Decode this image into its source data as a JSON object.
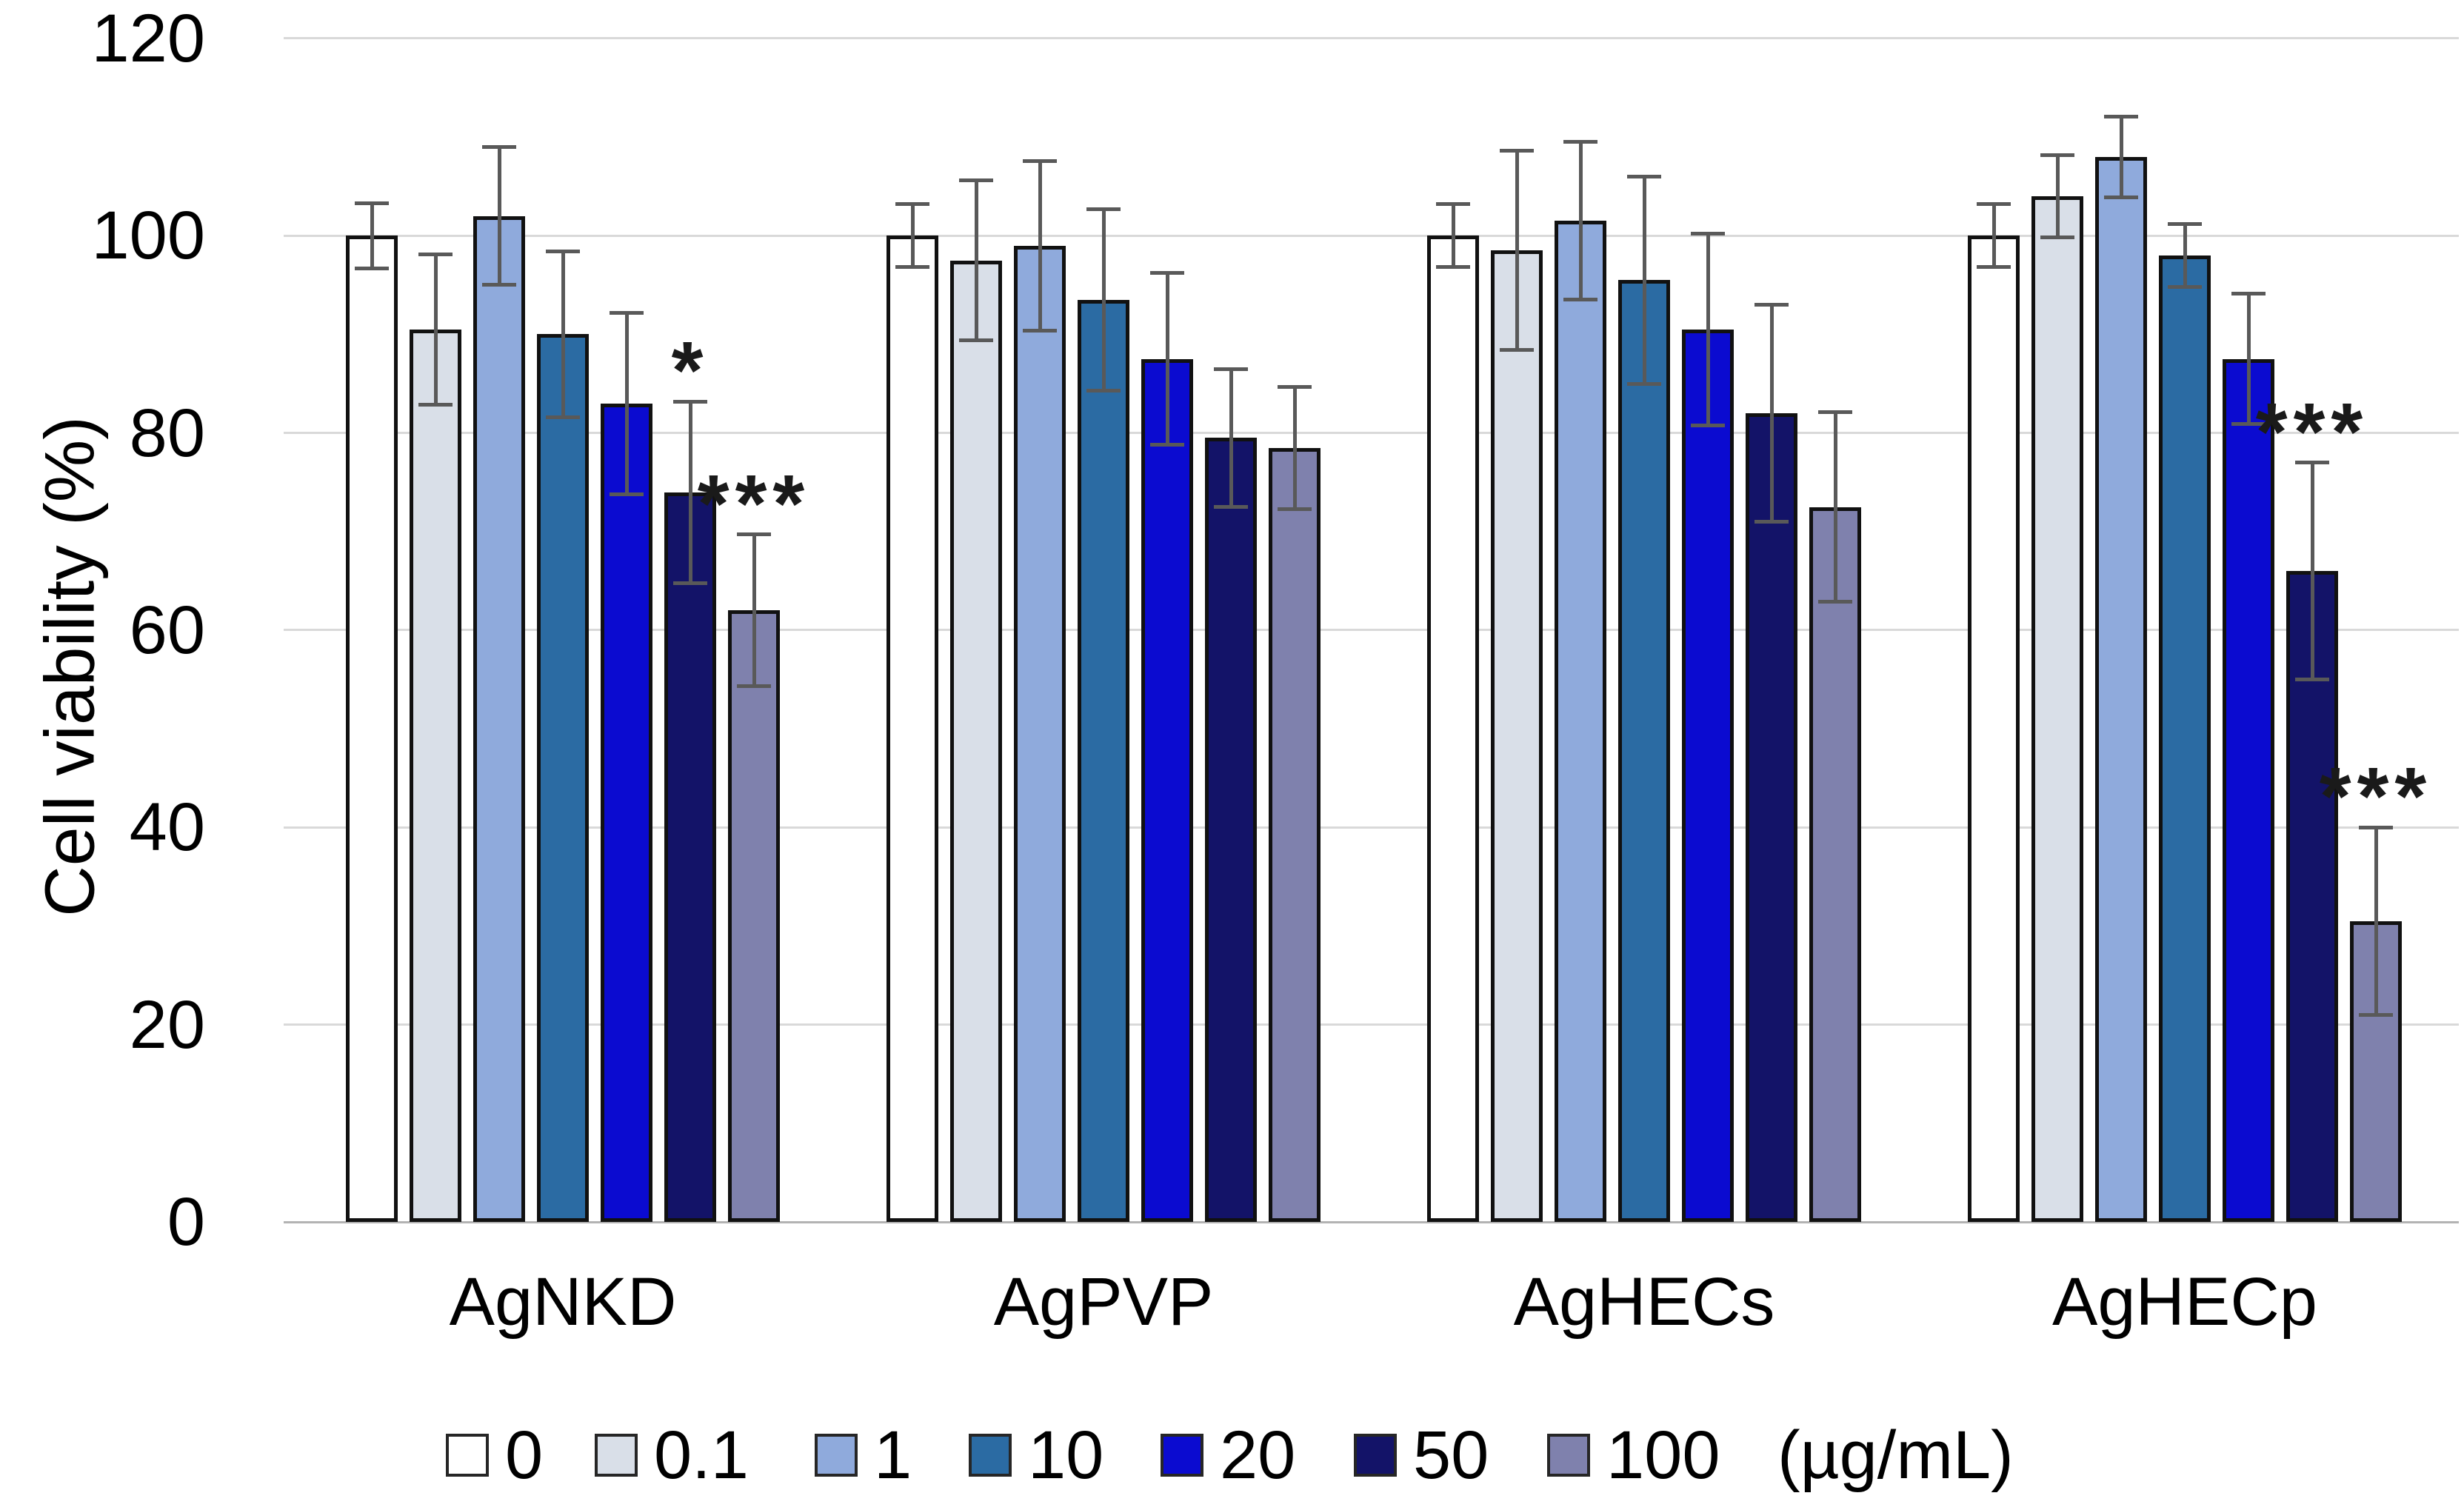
{
  "chart_data": {
    "type": "bar",
    "title": "",
    "xlabel": "",
    "ylabel": "Cell viability (%)",
    "ylim": [
      0,
      120
    ],
    "yticks": [
      0,
      20,
      40,
      60,
      80,
      100,
      120
    ],
    "grid": "horizontal",
    "legend_position": "bottom",
    "legend_suffix": "(µg/mL)",
    "categories": [
      "AgNKD",
      "AgPVP",
      "AgHECs",
      "AgHECp"
    ],
    "series": [
      {
        "name": "0",
        "color": "#FFFFFF",
        "values": [
          100,
          100,
          100,
          100
        ],
        "errors": [
          3.3,
          3.2,
          3.2,
          3.2
        ]
      },
      {
        "name": "0.1",
        "color": "#D9DFE8",
        "values": [
          90.5,
          97.5,
          98.5,
          104
        ],
        "errors": [
          7.6,
          8.1,
          10.1,
          4.2
        ]
      },
      {
        "name": "1",
        "color": "#8FAADC",
        "values": [
          102,
          99,
          101.5,
          108
        ],
        "errors": [
          7.0,
          8.6,
          8.0,
          4.1
        ]
      },
      {
        "name": "10",
        "color": "#2B6BA3",
        "values": [
          90,
          93.5,
          95.5,
          98
        ],
        "errors": [
          8.4,
          9.2,
          10.5,
          3.2
        ]
      },
      {
        "name": "20",
        "color": "#0B0BD0",
        "values": [
          83,
          87.5,
          90.5,
          87.5
        ],
        "errors": [
          9.2,
          8.7,
          9.7,
          6.6
        ]
      },
      {
        "name": "50",
        "color": "#131368",
        "values": [
          74,
          79.5,
          82,
          66
        ],
        "errors": [
          9.2,
          7.0,
          11.0,
          11.0
        ]
      },
      {
        "name": "100",
        "color": "#7F81AD",
        "values": [
          62,
          78.5,
          72.5,
          30.5
        ],
        "errors": [
          7.7,
          6.2,
          9.6,
          9.5
        ]
      }
    ],
    "significance": [
      {
        "category": "AgNKD",
        "series": "50",
        "label": "*"
      },
      {
        "category": "AgNKD",
        "series": "100",
        "label": "***"
      },
      {
        "category": "AgHECp",
        "series": "50",
        "label": "***"
      },
      {
        "category": "AgHECp",
        "series": "100",
        "label": "***"
      }
    ]
  }
}
